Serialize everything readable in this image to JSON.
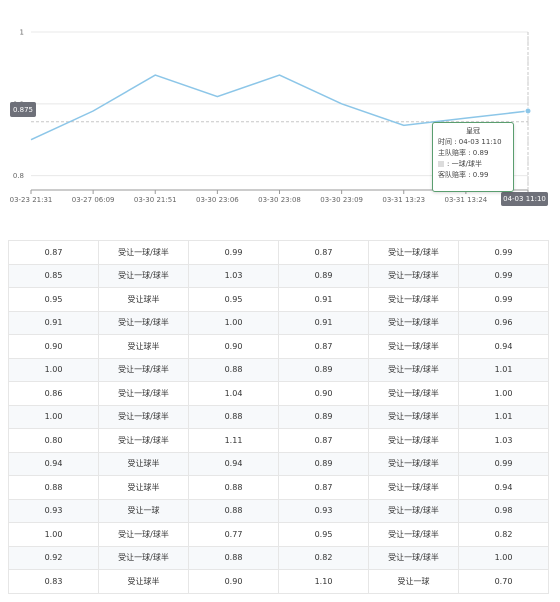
{
  "chart_data": {
    "type": "line",
    "x": [
      "03-23 21:31",
      "03-27 06:09",
      "03-30 21:51",
      "03-30 23:06",
      "03-30 23:08",
      "03-30 23:09",
      "03-31 13:23",
      "03-31 13:24",
      "04-03 11:10"
    ],
    "x_tick_labels": [
      "03-23 21:31",
      "03-27 06:09",
      "03-30 21:51",
      "03-30 23:06",
      "03-30 23:08",
      "03-30 23:09",
      "03-31 13:23",
      "03-31 13:24",
      "04-03 11:10"
    ],
    "series": [
      {
        "values": [
          0.85,
          0.89,
          0.94,
          0.91,
          0.94,
          0.9,
          0.87,
          0.88,
          0.89
        ]
      }
    ],
    "y_ticks": [
      "0.8",
      "0.9",
      "1"
    ],
    "ylim": [
      0.78,
      1.0
    ],
    "grid": true,
    "line_color": "#8cc6e8",
    "y_pointer_label": "0.875",
    "x_pointer_label": "04-03 11:10",
    "tooltip": {
      "title": "皇冠",
      "time": "时间 : 04-03 11:10",
      "home": "主队赔率 : 0.89",
      "handicap": ": 一球/球半",
      "away": "客队赔率 : 0.99"
    }
  },
  "table": {
    "rows": [
      [
        "0.87",
        "受让一球/球半",
        "0.99",
        "0.87",
        "受让一球/球半",
        "0.99"
      ],
      [
        "0.85",
        "受让一球/球半",
        "1.03",
        "0.89",
        "受让一球/球半",
        "0.99"
      ],
      [
        "0.95",
        "受让球半",
        "0.95",
        "0.91",
        "受让一球/球半",
        "0.99"
      ],
      [
        "0.91",
        "受让一球/球半",
        "1.00",
        "0.91",
        "受让一球/球半",
        "0.96"
      ],
      [
        "0.90",
        "受让球半",
        "0.90",
        "0.87",
        "受让一球/球半",
        "0.94"
      ],
      [
        "1.00",
        "受让一球/球半",
        "0.88",
        "0.89",
        "受让一球/球半",
        "1.01"
      ],
      [
        "0.86",
        "受让一球/球半",
        "1.04",
        "0.90",
        "受让一球/球半",
        "1.00"
      ],
      [
        "1.00",
        "受让一球/球半",
        "0.88",
        "0.89",
        "受让一球/球半",
        "1.01"
      ],
      [
        "0.80",
        "受让一球/球半",
        "1.11",
        "0.87",
        "受让一球/球半",
        "1.03"
      ],
      [
        "0.94",
        "受让球半",
        "0.94",
        "0.89",
        "受让一球/球半",
        "0.99"
      ],
      [
        "0.88",
        "受让球半",
        "0.88",
        "0.87",
        "受让一球/球半",
        "0.94"
      ],
      [
        "0.93",
        "受让一球",
        "0.88",
        "0.93",
        "受让一球/球半",
        "0.98"
      ],
      [
        "1.00",
        "受让一球/球半",
        "0.77",
        "0.95",
        "受让一球/球半",
        "0.82"
      ],
      [
        "0.92",
        "受让一球/球半",
        "0.88",
        "0.82",
        "受让一球/球半",
        "1.00"
      ],
      [
        "0.83",
        "受让球半",
        "0.90",
        "1.10",
        "受让一球",
        "0.70"
      ]
    ]
  }
}
